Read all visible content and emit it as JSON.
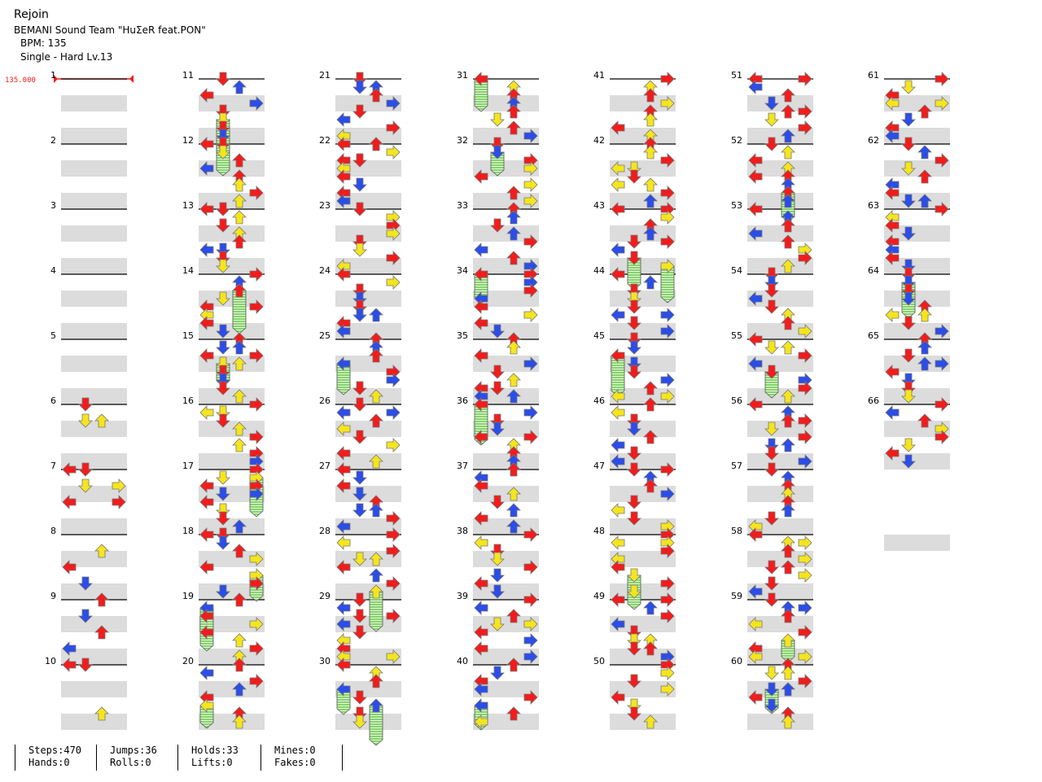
{
  "header": {
    "title": "Rejoin",
    "artist": "BEMANI Sound Team \"HuΣeR feat.PON\"",
    "bpm": "BPM: 135",
    "difficulty": "Single - Hard  Lv.13"
  },
  "bpm_marker": "135.000",
  "colors": {
    "red": "#f21c1c",
    "blue": "#2b4de8",
    "yellow": "#f5e51e",
    "hold": "#86d26b",
    "band": "#dcdcdc"
  },
  "measure_labels": [
    "1",
    "2",
    "3",
    "4",
    "5",
    "6",
    "7",
    "8",
    "9",
    "10",
    "11",
    "12",
    "13",
    "14",
    "15",
    "16",
    "17",
    "18",
    "19",
    "20",
    "21",
    "22",
    "23",
    "24",
    "25",
    "26",
    "27",
    "28",
    "29",
    "30",
    "31",
    "32",
    "33",
    "34",
    "35",
    "36",
    "37",
    "38",
    "39",
    "40",
    "41",
    "42",
    "43",
    "44",
    "45",
    "46",
    "47",
    "48",
    "49",
    "50",
    "51",
    "52",
    "53",
    "54",
    "55",
    "56",
    "57",
    "58",
    "59",
    "60",
    "61",
    "62",
    "63",
    "64",
    "65",
    "66"
  ],
  "stats": {
    "steps": "Steps:470",
    "hands": "Hands:0",
    "jumps": "Jumps:36",
    "rolls": "Rolls:0",
    "holds": "Holds:33",
    "lifts": "Lifts:0",
    "mines": "Mines:0",
    "fakes": "Fakes:0"
  }
}
